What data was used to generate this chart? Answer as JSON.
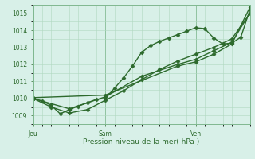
{
  "xlabel": "Pression niveau de la mer( hPa )",
  "ylim": [
    1008.7,
    1015.5
  ],
  "xlim": [
    0,
    48
  ],
  "yticks": [
    1009,
    1010,
    1011,
    1012,
    1013,
    1014,
    1015
  ],
  "xtick_labels": [
    "Jeu",
    "Sam",
    "Ven"
  ],
  "xtick_positions": [
    0,
    16,
    36
  ],
  "bg_color": "#d8f0e8",
  "grid_color": "#b0d8c0",
  "line_color": "#2d6a2d",
  "markersize": 2.5,
  "line_width": 1.0,
  "series1_x": [
    0,
    2,
    4,
    6,
    8,
    10,
    12,
    14,
    16,
    18,
    20,
    22,
    24,
    26,
    28,
    30,
    32,
    34,
    36,
    38,
    40,
    42,
    44,
    46,
    48
  ],
  "series1_y": [
    1010.0,
    1009.85,
    1009.6,
    1009.1,
    1009.35,
    1009.55,
    1009.75,
    1009.95,
    1010.0,
    1010.6,
    1011.2,
    1011.9,
    1012.7,
    1013.1,
    1013.35,
    1013.55,
    1013.75,
    1013.95,
    1014.15,
    1014.1,
    1013.55,
    1013.2,
    1013.25,
    1013.6,
    1015.2
  ],
  "series2_x": [
    0,
    4,
    8,
    12,
    16,
    20,
    24,
    28,
    32,
    36,
    40,
    44,
    48
  ],
  "series2_y": [
    1010.0,
    1009.5,
    1009.15,
    1009.35,
    1009.9,
    1010.45,
    1011.1,
    1011.7,
    1012.2,
    1012.6,
    1013.0,
    1013.5,
    1015.0
  ],
  "series3_x": [
    0,
    8,
    16,
    24,
    32,
    36,
    40,
    44,
    48
  ],
  "series3_y": [
    1010.0,
    1009.4,
    1010.1,
    1011.3,
    1012.0,
    1012.3,
    1012.8,
    1013.3,
    1015.0
  ],
  "series4_x": [
    0,
    16,
    32,
    36,
    40,
    44,
    48
  ],
  "series4_y": [
    1010.05,
    1010.2,
    1011.9,
    1012.15,
    1012.6,
    1013.2,
    1015.35
  ]
}
